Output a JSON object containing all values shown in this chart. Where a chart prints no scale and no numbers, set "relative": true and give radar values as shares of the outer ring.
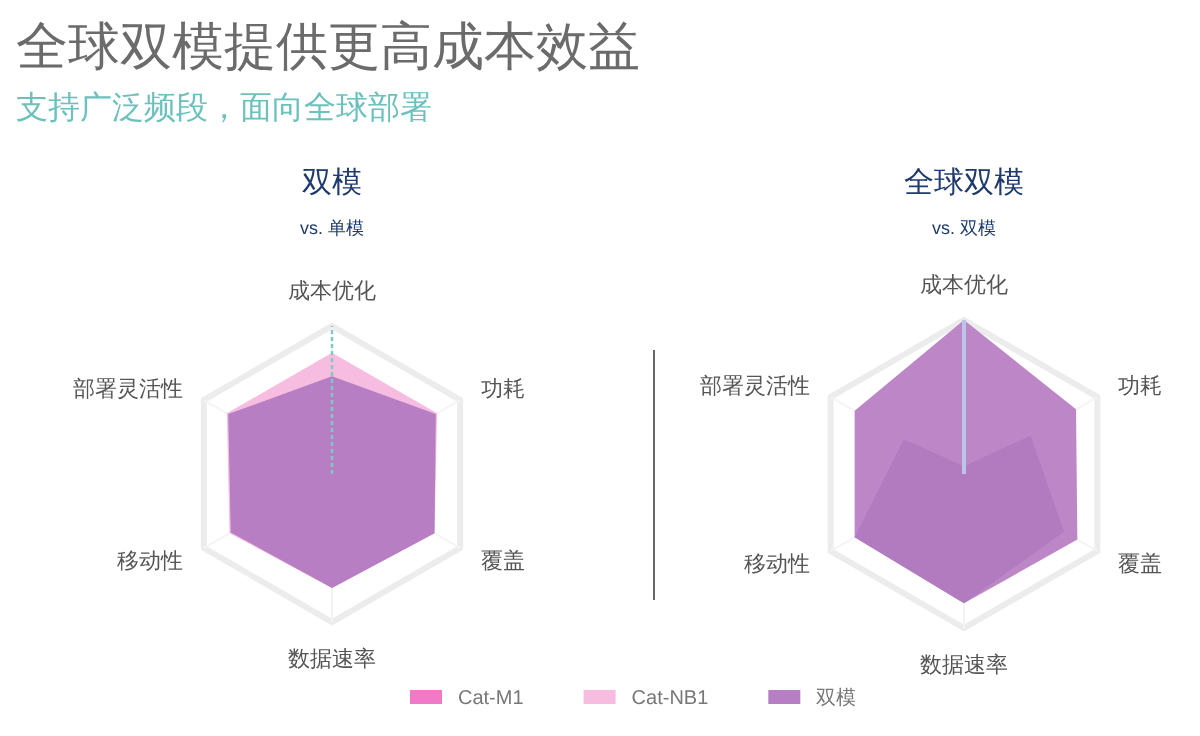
{
  "chart_data": [
    {
      "type": "radar",
      "title": "全球双模提供更高成本效益",
      "subtitle": "支持广泛频段，面向全球部署",
      "annotations": [
        "双模",
        "vs. 单模"
      ],
      "categories": [
        "成本优化",
        "功耗",
        "覆盖",
        "数据速率",
        "移动性",
        "部署灵活性"
      ],
      "relative": true,
      "legend": "bottom",
      "series": [
        {
          "name": "Cat-M1",
          "color": "#f07ac8",
          "values": [
            0.62,
            0.78,
            0.78,
            0.75,
            0.77,
            0.78
          ]
        },
        {
          "name": "Cat-NB1",
          "color": "#f7bde0",
          "values": [
            0.82,
            0.82,
            0.8,
            0.77,
            0.8,
            0.82
          ]
        },
        {
          "name": "双模",
          "color": "#b77ec3",
          "values": [
            0.66,
            0.81,
            0.8,
            0.77,
            0.79,
            0.81
          ]
        }
      ]
    },
    {
      "type": "radar",
      "annotations": [
        "全球双模",
        "vs. 双模"
      ],
      "categories": [
        "成本优化",
        "功耗",
        "覆盖",
        "数据速率",
        "移动性",
        "部署灵活性"
      ],
      "relative": true,
      "series": [
        {
          "color": "#bd87c7",
          "values": [
            1.0,
            0.84,
            0.85,
            0.84,
            0.82,
            0.82
          ]
        },
        {
          "color": "#b27bc0",
          "values": [
            0.05,
            0.5,
            0.75,
            0.84,
            0.82,
            0.45
          ]
        }
      ]
    }
  ]
}
